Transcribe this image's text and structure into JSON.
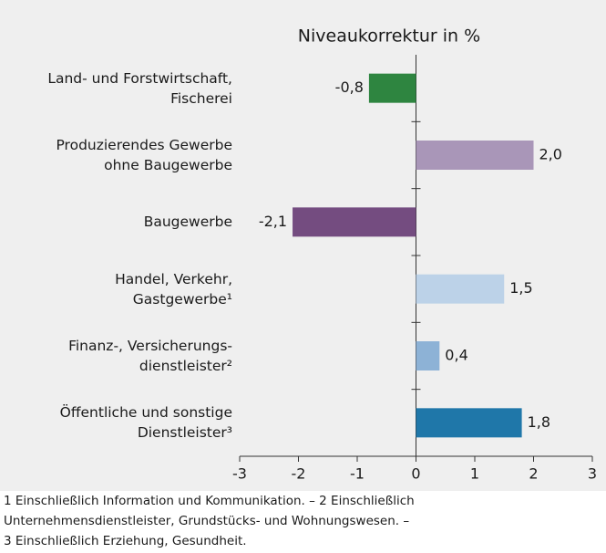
{
  "chart_data": {
    "type": "bar",
    "orientation": "horizontal",
    "title": "Niveaukorrektur in %",
    "categories": [
      "Land- und Forstwirtschaft,\nFischerei",
      "Produzierendes Gewerbe\nohne Baugewerbe",
      "Baugewerbe",
      "Handel, Verkehr,\nGastgewerbe¹",
      "Finanz-, Versicherungs-\ndienstleister²",
      "Öffentliche und sonstige\nDienstleister³"
    ],
    "values": [
      -0.8,
      2.0,
      -2.1,
      1.5,
      0.4,
      1.8
    ],
    "value_labels": [
      "-0,8",
      "2,0",
      "-2,1",
      "1,5",
      "0,4",
      "1,8"
    ],
    "colors": [
      "#2e8540",
      "#a996b8",
      "#744c80",
      "#bcd2e8",
      "#8db2d6",
      "#1f77a9"
    ],
    "xlim": [
      -3,
      3
    ],
    "xticks": [
      -3,
      -2,
      -1,
      0,
      1,
      2,
      3
    ],
    "footnotes": [
      "1 Einschließlich Information und Kommunikation. – 2 Einschließlich",
      "Unternehmensdienstleister, Grundstücks- und Wohnungswesen. –",
      "3 Einschließlich Erziehung, Gesundheit."
    ]
  }
}
